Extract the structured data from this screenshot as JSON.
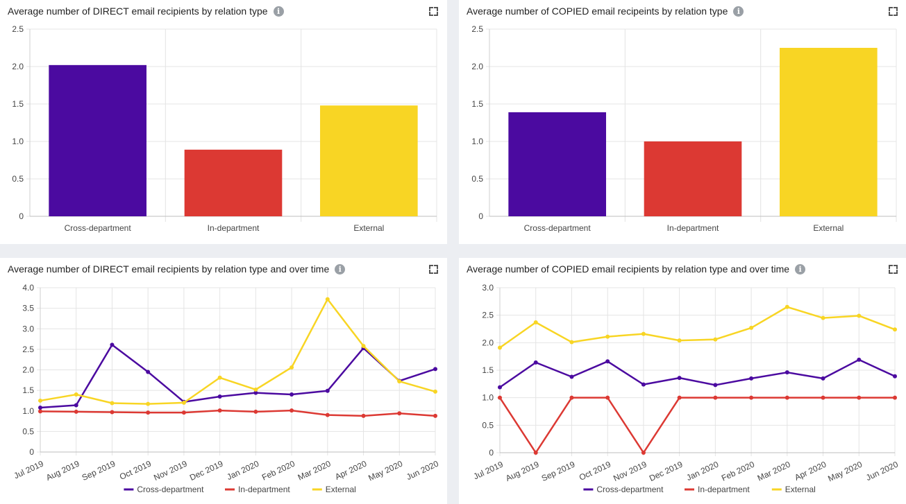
{
  "panels": [
    {
      "title": "Average number of DIRECT email recipients by relation type",
      "chart_data": {
        "type": "bar",
        "title": "Average number of DIRECT email recipients by relation type",
        "categories": [
          "Cross-department",
          "In-department",
          "External"
        ],
        "values": [
          2.02,
          0.89,
          1.48
        ],
        "colors": [
          "#4b0aa0",
          "#dc3933",
          "#f8d524"
        ],
        "ylim": [
          0,
          2.5
        ],
        "yticks": [
          "0",
          "0.5",
          "1.0",
          "1.5",
          "2.0",
          "2.5"
        ],
        "grid": true
      }
    },
    {
      "title": "Average number of COPIED email recipeints by relation type",
      "chart_data": {
        "type": "bar",
        "title": "Average number of COPIED email recipeints by relation type",
        "categories": [
          "Cross-department",
          "In-department",
          "External"
        ],
        "values": [
          1.39,
          1.0,
          2.25
        ],
        "colors": [
          "#4b0aa0",
          "#dc3933",
          "#f8d524"
        ],
        "ylim": [
          0,
          2.5
        ],
        "yticks": [
          "0",
          "0.5",
          "1.0",
          "1.5",
          "2.0",
          "2.5"
        ],
        "grid": true
      }
    },
    {
      "title": "Average number of DIRECT email recipients by relation type and over time",
      "chart_data": {
        "type": "line",
        "title": "Average number of DIRECT email recipients by relation type and over time",
        "categories": [
          "Jul 2019",
          "Aug 2019",
          "Sep 2019",
          "Oct 2019",
          "Nov 2019",
          "Dec 2019",
          "Jan 2020",
          "Feb 2020",
          "Mar 2020",
          "Apr 2020",
          "May 2020",
          "Jun 2020"
        ],
        "series": [
          {
            "name": "Cross-department",
            "color": "#4b0aa0",
            "values": [
              1.08,
              1.14,
              2.61,
              1.95,
              1.22,
              1.35,
              1.44,
              1.4,
              1.49,
              2.53,
              1.73,
              2.02
            ]
          },
          {
            "name": "In-department",
            "color": "#dc3933",
            "values": [
              0.99,
              0.98,
              0.97,
              0.96,
              0.96,
              1.01,
              0.98,
              1.01,
              0.9,
              0.88,
              0.94,
              0.88
            ]
          },
          {
            "name": "External",
            "color": "#f8d524",
            "values": [
              1.25,
              1.4,
              1.19,
              1.17,
              1.2,
              1.81,
              1.52,
              2.06,
              3.72,
              2.58,
              1.72,
              1.47
            ]
          }
        ],
        "ylim": [
          0,
          4
        ],
        "yticks": [
          "0",
          "0.5",
          "1.0",
          "1.5",
          "2.0",
          "2.5",
          "3.0",
          "3.5",
          "4.0"
        ],
        "grid": true,
        "legend": "bottom"
      }
    },
    {
      "title": "Average number of COPIED email recipients by relation type and over time",
      "chart_data": {
        "type": "line",
        "title": "Average number of COPIED email recipients by relation type and over time",
        "categories": [
          "Jul 2019",
          "Aug 2019",
          "Sep 2019",
          "Oct 2019",
          "Nov 2019",
          "Dec 2019",
          "Jan 2020",
          "Feb 2020",
          "Mar 2020",
          "Apr 2020",
          "May 2020",
          "Jun 2020"
        ],
        "series": [
          {
            "name": "Cross-department",
            "color": "#4b0aa0",
            "values": [
              1.19,
              1.64,
              1.38,
              1.66,
              1.24,
              1.36,
              1.23,
              1.35,
              1.46,
              1.35,
              1.69,
              1.39
            ]
          },
          {
            "name": "In-department",
            "color": "#dc3933",
            "values": [
              1.0,
              0.0,
              1.0,
              1.0,
              0.0,
              1.0,
              1.0,
              1.0,
              1.0,
              1.0,
              1.0,
              1.0
            ]
          },
          {
            "name": "External",
            "color": "#f8d524",
            "values": [
              1.91,
              2.37,
              2.01,
              2.11,
              2.16,
              2.04,
              2.06,
              2.27,
              2.65,
              2.45,
              2.49,
              2.24
            ]
          }
        ],
        "ylim": [
          0,
          3
        ],
        "yticks": [
          "0",
          "0.5",
          "1.0",
          "1.5",
          "2.0",
          "2.5",
          "3.0"
        ],
        "grid": true,
        "legend": "bottom"
      }
    }
  ],
  "chart_data": [
    {
      "type": "bar",
      "categories": [
        "Cross-department",
        "In-department",
        "External"
      ],
      "values": [
        2.02,
        0.89,
        1.48
      ],
      "ylim": [
        0,
        2.5
      ]
    },
    {
      "type": "bar",
      "categories": [
        "Cross-department",
        "In-department",
        "External"
      ],
      "values": [
        1.39,
        1.0,
        2.25
      ],
      "ylim": [
        0,
        2.5
      ]
    },
    {
      "type": "line",
      "categories": [
        "Jul 2019",
        "Aug 2019",
        "Sep 2019",
        "Oct 2019",
        "Nov 2019",
        "Dec 2019",
        "Jan 2020",
        "Feb 2020",
        "Mar 2020",
        "Apr 2020",
        "May 2020",
        "Jun 2020"
      ],
      "series": [
        {
          "name": "Cross-department",
          "values": [
            1.08,
            1.14,
            2.61,
            1.95,
            1.22,
            1.35,
            1.44,
            1.4,
            1.49,
            2.53,
            1.73,
            2.02
          ]
        },
        {
          "name": "In-department",
          "values": [
            0.99,
            0.98,
            0.97,
            0.96,
            0.96,
            1.01,
            0.98,
            1.01,
            0.9,
            0.88,
            0.94,
            0.88
          ]
        },
        {
          "name": "External",
          "values": [
            1.25,
            1.4,
            1.19,
            1.17,
            1.2,
            1.81,
            1.52,
            2.06,
            3.72,
            2.58,
            1.72,
            1.47
          ]
        }
      ],
      "ylim": [
        0,
        4
      ]
    },
    {
      "type": "line",
      "categories": [
        "Jul 2019",
        "Aug 2019",
        "Sep 2019",
        "Oct 2019",
        "Nov 2019",
        "Dec 2019",
        "Jan 2020",
        "Feb 2020",
        "Mar 2020",
        "Apr 2020",
        "May 2020",
        "Jun 2020"
      ],
      "series": [
        {
          "name": "Cross-department",
          "values": [
            1.19,
            1.64,
            1.38,
            1.66,
            1.24,
            1.36,
            1.23,
            1.35,
            1.46,
            1.35,
            1.69,
            1.39
          ]
        },
        {
          "name": "In-department",
          "values": [
            1.0,
            0.0,
            1.0,
            1.0,
            0.0,
            1.0,
            1.0,
            1.0,
            1.0,
            1.0,
            1.0,
            1.0
          ]
        },
        {
          "name": "External",
          "values": [
            1.91,
            2.37,
            2.01,
            2.11,
            2.16,
            2.04,
            2.06,
            2.27,
            2.65,
            2.45,
            2.49,
            2.24
          ]
        }
      ],
      "ylim": [
        0,
        3
      ]
    }
  ],
  "icons": {
    "info": "info-icon",
    "expand": "expand-icon"
  },
  "info_glyph": "i"
}
